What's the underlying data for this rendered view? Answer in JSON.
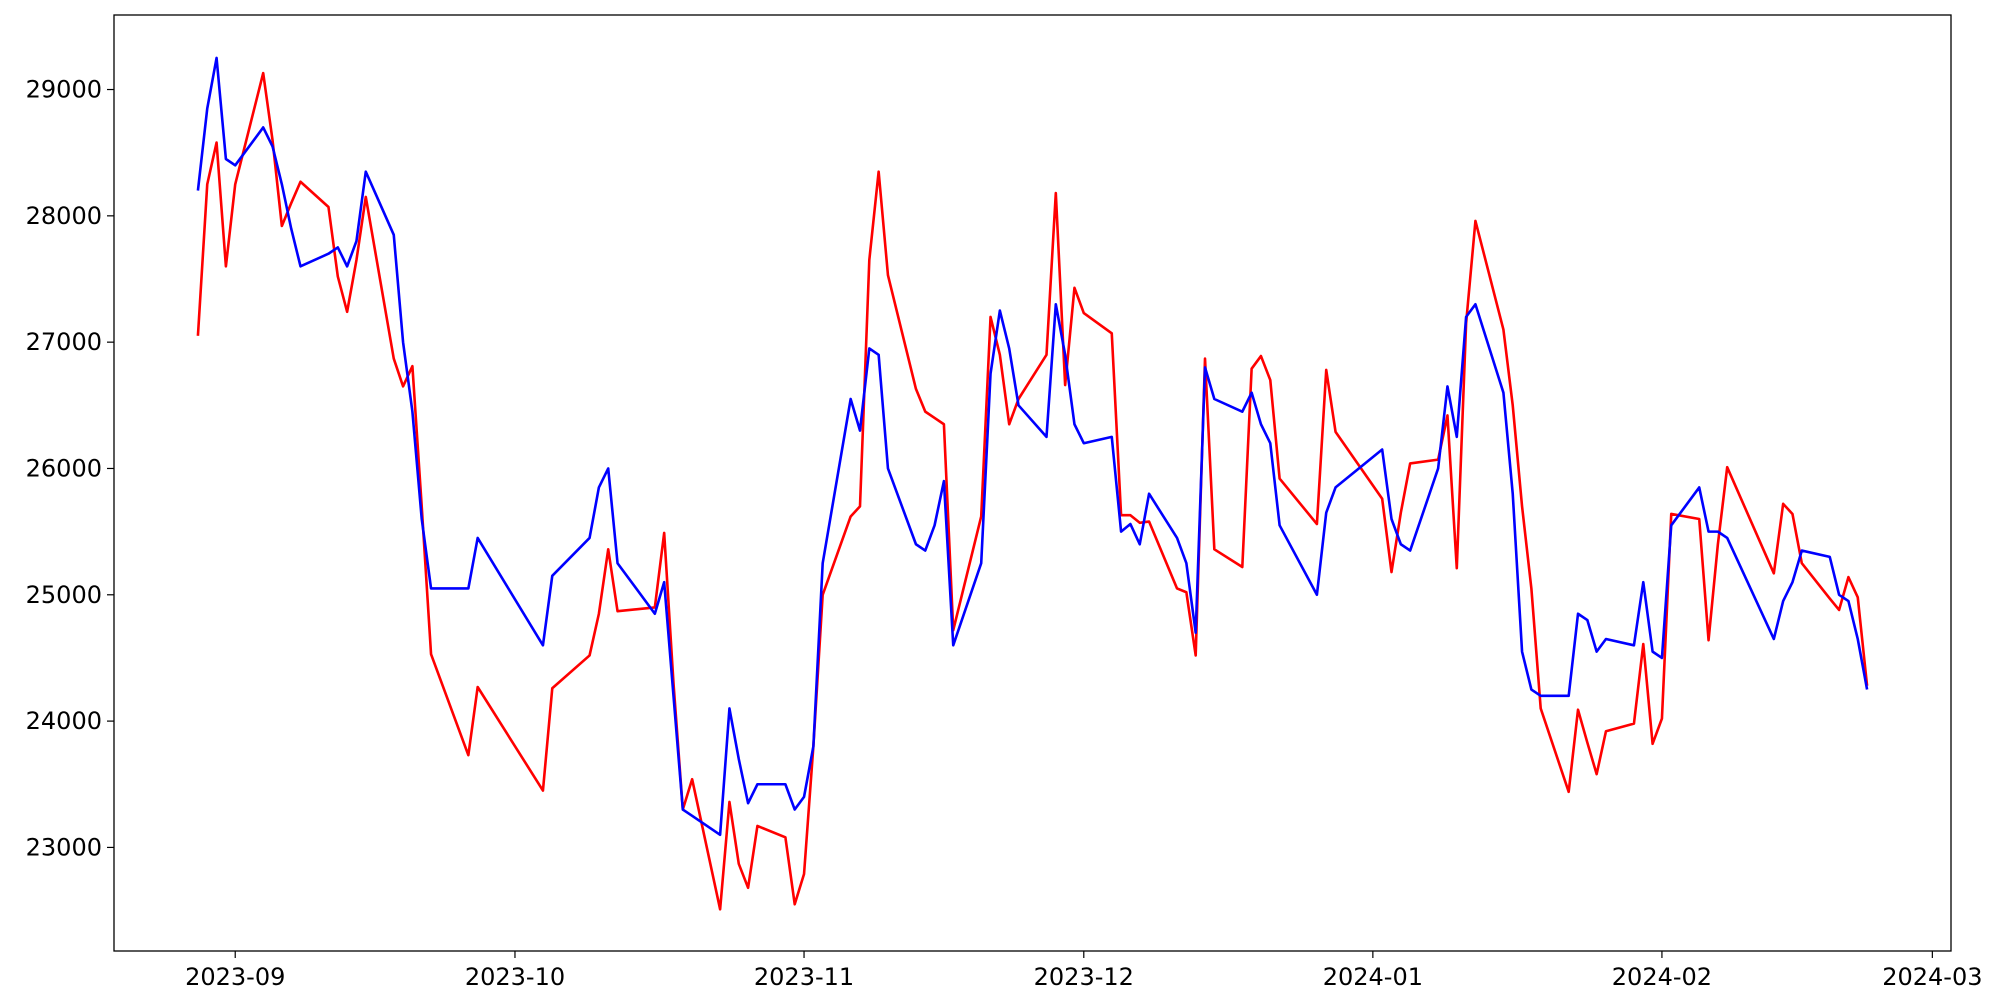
{
  "chart_data": {
    "type": "line",
    "x": [
      "2023-08-28",
      "2023-08-29",
      "2023-08-30",
      "2023-08-31",
      "2023-09-01",
      "2023-09-04",
      "2023-09-05",
      "2023-09-06",
      "2023-09-07",
      "2023-09-08",
      "2023-09-11",
      "2023-09-12",
      "2023-09-13",
      "2023-09-14",
      "2023-09-15",
      "2023-09-18",
      "2023-09-19",
      "2023-09-20",
      "2023-09-21",
      "2023-09-22",
      "2023-09-26",
      "2023-09-27",
      "2023-10-04",
      "2023-10-05",
      "2023-10-09",
      "2023-10-10",
      "2023-10-11",
      "2023-10-12",
      "2023-10-16",
      "2023-10-17",
      "2023-10-18",
      "2023-10-19",
      "2023-10-20",
      "2023-10-23",
      "2023-10-24",
      "2023-10-25",
      "2023-10-26",
      "2023-10-27",
      "2023-10-30",
      "2023-10-31",
      "2023-11-01",
      "2023-11-02",
      "2023-11-03",
      "2023-11-06",
      "2023-11-07",
      "2023-11-08",
      "2023-11-09",
      "2023-11-10",
      "2023-11-13",
      "2023-11-14",
      "2023-11-15",
      "2023-11-16",
      "2023-11-17",
      "2023-11-20",
      "2023-11-21",
      "2023-11-22",
      "2023-11-23",
      "2023-11-24",
      "2023-11-27",
      "2023-11-28",
      "2023-11-29",
      "2023-11-30",
      "2023-12-01",
      "2023-12-04",
      "2023-12-05",
      "2023-12-06",
      "2023-12-07",
      "2023-12-08",
      "2023-12-11",
      "2023-12-12",
      "2023-12-13",
      "2023-12-14",
      "2023-12-15",
      "2023-12-18",
      "2023-12-19",
      "2023-12-20",
      "2023-12-21",
      "2023-12-22",
      "2023-12-26",
      "2023-12-27",
      "2023-12-28",
      "2024-01-02",
      "2024-01-03",
      "2024-01-04",
      "2024-01-05",
      "2024-01-08",
      "2024-01-09",
      "2024-01-10",
      "2024-01-11",
      "2024-01-12",
      "2024-01-15",
      "2024-01-16",
      "2024-01-17",
      "2024-01-18",
      "2024-01-19",
      "2024-01-22",
      "2024-01-23",
      "2024-01-24",
      "2024-01-25",
      "2024-01-26",
      "2024-01-29",
      "2024-01-30",
      "2024-01-31",
      "2024-02-01",
      "2024-02-02",
      "2024-02-05",
      "2024-02-06",
      "2024-02-07",
      "2024-02-08",
      "2024-02-13",
      "2024-02-14",
      "2024-02-15",
      "2024-02-16",
      "2024-02-19",
      "2024-02-20",
      "2024-02-21",
      "2024-02-22",
      "2024-02-23"
    ],
    "series": [
      {
        "color": "#ff0000",
        "values": [
          27050,
          28250,
          28580,
          27600,
          28250,
          29130,
          28600,
          27920,
          28100,
          28270,
          28070,
          27520,
          27240,
          27650,
          28150,
          26870,
          26650,
          26810,
          25700,
          24530,
          23730,
          24270,
          23450,
          24260,
          24520,
          24850,
          25360,
          24870,
          24900,
          25490,
          24300,
          23300,
          23540,
          22510,
          23360,
          22870,
          22680,
          23170,
          23080,
          22550,
          22790,
          23800,
          25000,
          25620,
          25700,
          27650,
          28350,
          27530,
          26630,
          26450,
          26400,
          26350,
          24720,
          25620,
          27200,
          26900,
          26350,
          26550,
          26900,
          28180,
          26660,
          27430,
          27230,
          27070,
          25630,
          25630,
          25570,
          25580,
          25050,
          25020,
          24520,
          26870,
          25360,
          25220,
          26790,
          26890,
          26700,
          25920,
          25560,
          26780,
          26290,
          25760,
          25180,
          25650,
          26040,
          26070,
          26420,
          25210,
          27150,
          27960,
          27100,
          26500,
          25700,
          25050,
          24100,
          23440,
          24090,
          23830,
          23580,
          23920,
          23980,
          24610,
          23820,
          24020,
          25640,
          25600,
          24640,
          25400,
          26010,
          25170,
          25720,
          25640,
          25250,
          24970,
          24880,
          25140,
          24980,
          24280
        ]
      },
      {
        "color": "#0000ff",
        "values": [
          28200,
          28850,
          29250,
          28450,
          28400,
          28700,
          28550,
          28250,
          27900,
          27600,
          27700,
          27750,
          27600,
          27800,
          28350,
          27850,
          27000,
          26450,
          25600,
          25050,
          25050,
          25450,
          24600,
          25150,
          25450,
          25850,
          26000,
          25250,
          24850,
          25100,
          24200,
          23300,
          23250,
          23100,
          24100,
          23700,
          23350,
          23500,
          23500,
          23300,
          23400,
          23800,
          25250,
          26550,
          26300,
          26950,
          26900,
          26000,
          25400,
          25350,
          25550,
          25900,
          24600,
          25250,
          26750,
          27250,
          26950,
          26500,
          26250,
          27300,
          26900,
          26350,
          26200,
          26250,
          25500,
          25560,
          25400,
          25800,
          25450,
          25250,
          24700,
          26800,
          26550,
          26450,
          26600,
          26350,
          26200,
          25550,
          25000,
          25650,
          25850,
          26150,
          25600,
          25400,
          25350,
          26000,
          26650,
          26250,
          27200,
          27300,
          26600,
          25800,
          24550,
          24250,
          24200,
          24200,
          24850,
          24800,
          24550,
          24650,
          24600,
          25100,
          24550,
          24500,
          25550,
          25850,
          25500,
          25500,
          25450,
          24650,
          24950,
          25100,
          25350,
          25300,
          25000,
          24950,
          24650,
          24250
        ]
      }
    ],
    "xlim": [
      "2023-08-19",
      "2024-03-03"
    ],
    "xticks": [
      {
        "value": "2023-09-01",
        "label": "2023-09"
      },
      {
        "value": "2023-10-01",
        "label": "2023-10"
      },
      {
        "value": "2023-11-01",
        "label": "2023-11"
      },
      {
        "value": "2023-12-01",
        "label": "2023-12"
      },
      {
        "value": "2024-01-01",
        "label": "2024-01"
      },
      {
        "value": "2024-02-01",
        "label": "2024-02"
      },
      {
        "value": "2024-03-01",
        "label": "2024-03"
      }
    ],
    "ylim": [
      22180,
      29590
    ],
    "yticks": [
      23000,
      24000,
      25000,
      26000,
      27000,
      28000,
      29000
    ]
  }
}
